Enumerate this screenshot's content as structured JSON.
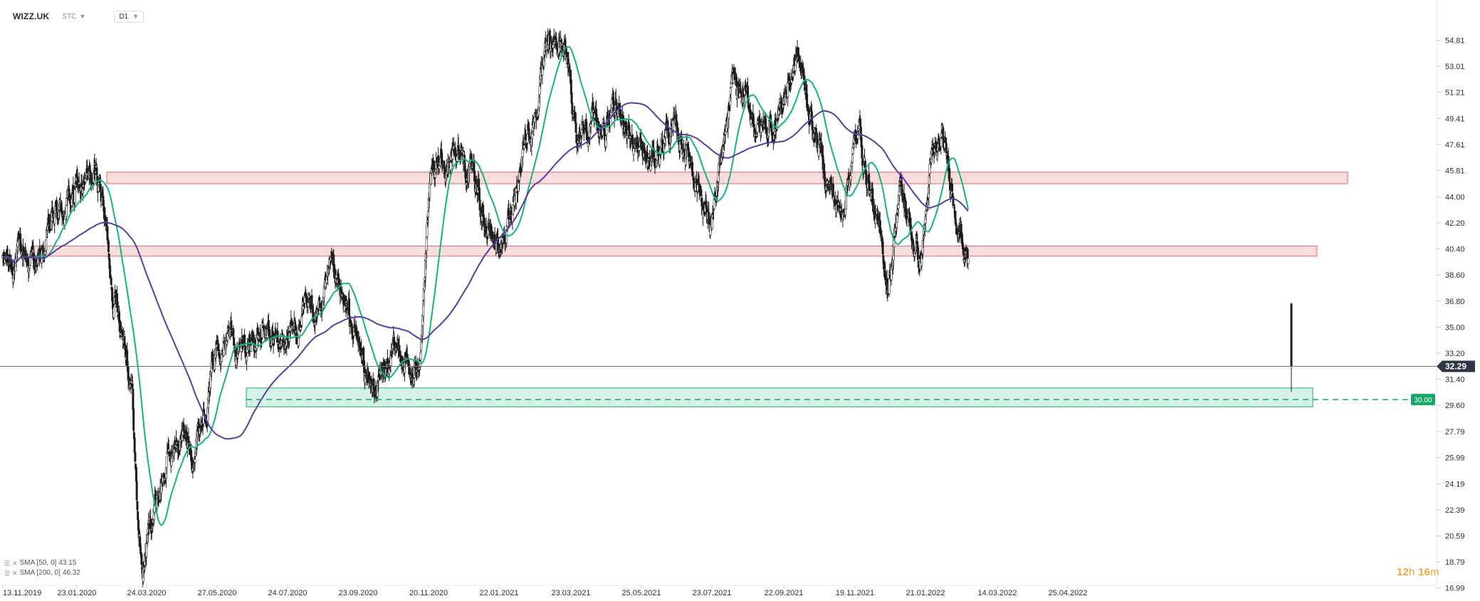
{
  "toolbar": {
    "symbol": "WIZZ.UK",
    "data_source": "STC",
    "timeframe": "D1"
  },
  "chart_data": {
    "type": "candlestick",
    "title": "",
    "xlabel": "",
    "ylabel": "",
    "ylim": [
      16.99,
      56.2
    ],
    "x_tick_labels": [
      "13.11.2019",
      "23.01.2020",
      "24.03.2020",
      "27.05.2020",
      "24.07.2020",
      "23.09.2020",
      "20.11.2020",
      "22.01.2021",
      "23.03.2021",
      "25.05.2021",
      "23.07.2021",
      "22.09.2021",
      "19.11.2021",
      "21.01.2022",
      "14.03.2022",
      "25.04.2022"
    ],
    "y_tick_labels": [
      "54.81",
      "53.01",
      "51.21",
      "49.41",
      "47.61",
      "45.81",
      "44.00",
      "42.20",
      "40.40",
      "38.60",
      "36.80",
      "35.00",
      "33.20",
      "31.40",
      "29.60",
      "27.79",
      "25.99",
      "24.19",
      "22.39",
      "20.59",
      "18.79",
      "16.99"
    ],
    "current_price": "32.29",
    "pending_level": "30.00",
    "resistance_zones": [
      {
        "from": 44.9,
        "to": 45.7,
        "start_date": "23.01.2020",
        "end_date": "14.03.2022"
      },
      {
        "from": 39.9,
        "to": 40.6,
        "start_date": "13.11.2019",
        "end_date": "14.03.2022"
      }
    ],
    "support_zones": [
      {
        "from": 29.5,
        "to": 30.8,
        "start_date": "24.03.2020",
        "end_date": "14.03.2022"
      }
    ],
    "series": [
      {
        "name": "SMA [50, 0]",
        "value": "43.15"
      },
      {
        "name": "SMA [200, 0]",
        "value": "46.32"
      }
    ],
    "colors": {
      "up": "#ffffff",
      "down": "#1c1c1c",
      "sma50": "#13b38a",
      "sma200": "#5b3aa8",
      "resistance": "#e06a6a",
      "support": "#26a873",
      "price_label": "#2f3744",
      "pending_label": "#13a865"
    }
  },
  "countdown": {
    "hours": "12",
    "hours_unit": "h",
    "minutes": "16",
    "minutes_unit": "m"
  }
}
